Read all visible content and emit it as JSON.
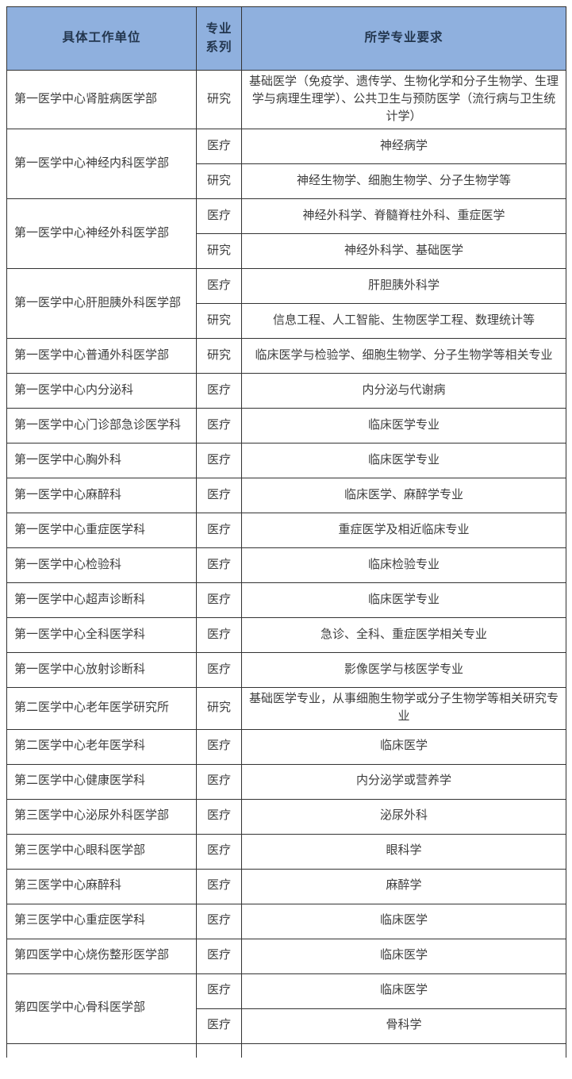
{
  "table": {
    "headers": [
      "具体工作单位",
      "专业系列",
      "所学专业要求"
    ],
    "groups": [
      {
        "unit": "第一医学中心肾脏病医学部",
        "rows": [
          {
            "series": "研究",
            "requirement": "基础医学（免疫学、遗传学、生物化学和分子生物学、生理学与病理生理学）、公共卫生与预防医学（流行病与卫生统计学）"
          }
        ]
      },
      {
        "unit": "第一医学中心神经内科医学部",
        "rows": [
          {
            "series": "医疗",
            "requirement": "神经病学"
          },
          {
            "series": "研究",
            "requirement": "神经生物学、细胞生物学、分子生物学等"
          }
        ]
      },
      {
        "unit": "第一医学中心神经外科医学部",
        "rows": [
          {
            "series": "医疗",
            "requirement": "神经外科学、脊髓脊柱外科、重症医学"
          },
          {
            "series": "研究",
            "requirement": "神经外科学、基础医学"
          }
        ]
      },
      {
        "unit": "第一医学中心肝胆胰外科医学部",
        "rows": [
          {
            "series": "医疗",
            "requirement": "肝胆胰外科学"
          },
          {
            "series": "研究",
            "requirement": "信息工程、人工智能、生物医学工程、数理统计等"
          }
        ]
      },
      {
        "unit": "第一医学中心普通外科医学部",
        "rows": [
          {
            "series": "研究",
            "requirement": "临床医学与检验学、细胞生物学、分子生物学等相关专业"
          }
        ]
      },
      {
        "unit": "第一医学中心内分泌科",
        "rows": [
          {
            "series": "医疗",
            "requirement": "内分泌与代谢病"
          }
        ]
      },
      {
        "unit": "第一医学中心门诊部急诊医学科",
        "rows": [
          {
            "series": "医疗",
            "requirement": "临床医学专业"
          }
        ]
      },
      {
        "unit": "第一医学中心胸外科",
        "rows": [
          {
            "series": "医疗",
            "requirement": "临床医学专业"
          }
        ]
      },
      {
        "unit": "第一医学中心麻醉科",
        "rows": [
          {
            "series": "医疗",
            "requirement": "临床医学、麻醉学专业"
          }
        ]
      },
      {
        "unit": "第一医学中心重症医学科",
        "rows": [
          {
            "series": "医疗",
            "requirement": "重症医学及相近临床专业"
          }
        ]
      },
      {
        "unit": "第一医学中心检验科",
        "rows": [
          {
            "series": "医疗",
            "requirement": "临床检验专业"
          }
        ]
      },
      {
        "unit": "第一医学中心超声诊断科",
        "rows": [
          {
            "series": "医疗",
            "requirement": "临床医学专业"
          }
        ]
      },
      {
        "unit": "第一医学中心全科医学科",
        "rows": [
          {
            "series": "医疗",
            "requirement": "急诊、全科、重症医学相关专业"
          }
        ]
      },
      {
        "unit": "第一医学中心放射诊断科",
        "rows": [
          {
            "series": "医疗",
            "requirement": "影像医学与核医学专业"
          }
        ]
      },
      {
        "unit": "第二医学中心老年医学研究所",
        "rows": [
          {
            "series": "研究",
            "requirement": "基础医学专业，从事细胞生物学或分子生物学等相关研究专业"
          }
        ]
      },
      {
        "unit": "第二医学中心老年医学科",
        "rows": [
          {
            "series": "医疗",
            "requirement": "临床医学"
          }
        ]
      },
      {
        "unit": "第二医学中心健康医学科",
        "rows": [
          {
            "series": "医疗",
            "requirement": "内分泌学或营养学"
          }
        ]
      },
      {
        "unit": "第三医学中心泌尿外科医学部",
        "rows": [
          {
            "series": "医疗",
            "requirement": "泌尿外科"
          }
        ]
      },
      {
        "unit": "第三医学中心眼科医学部",
        "rows": [
          {
            "series": "医疗",
            "requirement": "眼科学"
          }
        ]
      },
      {
        "unit": "第三医学中心麻醉科",
        "rows": [
          {
            "series": "医疗",
            "requirement": "麻醉学"
          }
        ]
      },
      {
        "unit": "第三医学中心重症医学科",
        "rows": [
          {
            "series": "医疗",
            "requirement": "临床医学"
          }
        ]
      },
      {
        "unit": "第四医学中心烧伤整形医学部",
        "rows": [
          {
            "series": "医疗",
            "requirement": "临床医学"
          }
        ]
      },
      {
        "unit": "第四医学中心骨科医学部",
        "rows": [
          {
            "series": "医疗",
            "requirement": "临床医学"
          },
          {
            "series": "医疗",
            "requirement": "骨科学"
          }
        ]
      }
    ]
  },
  "colors": {
    "header_bg": "#8FB0DE",
    "border": "#333333",
    "text": "#3d3d3d"
  }
}
